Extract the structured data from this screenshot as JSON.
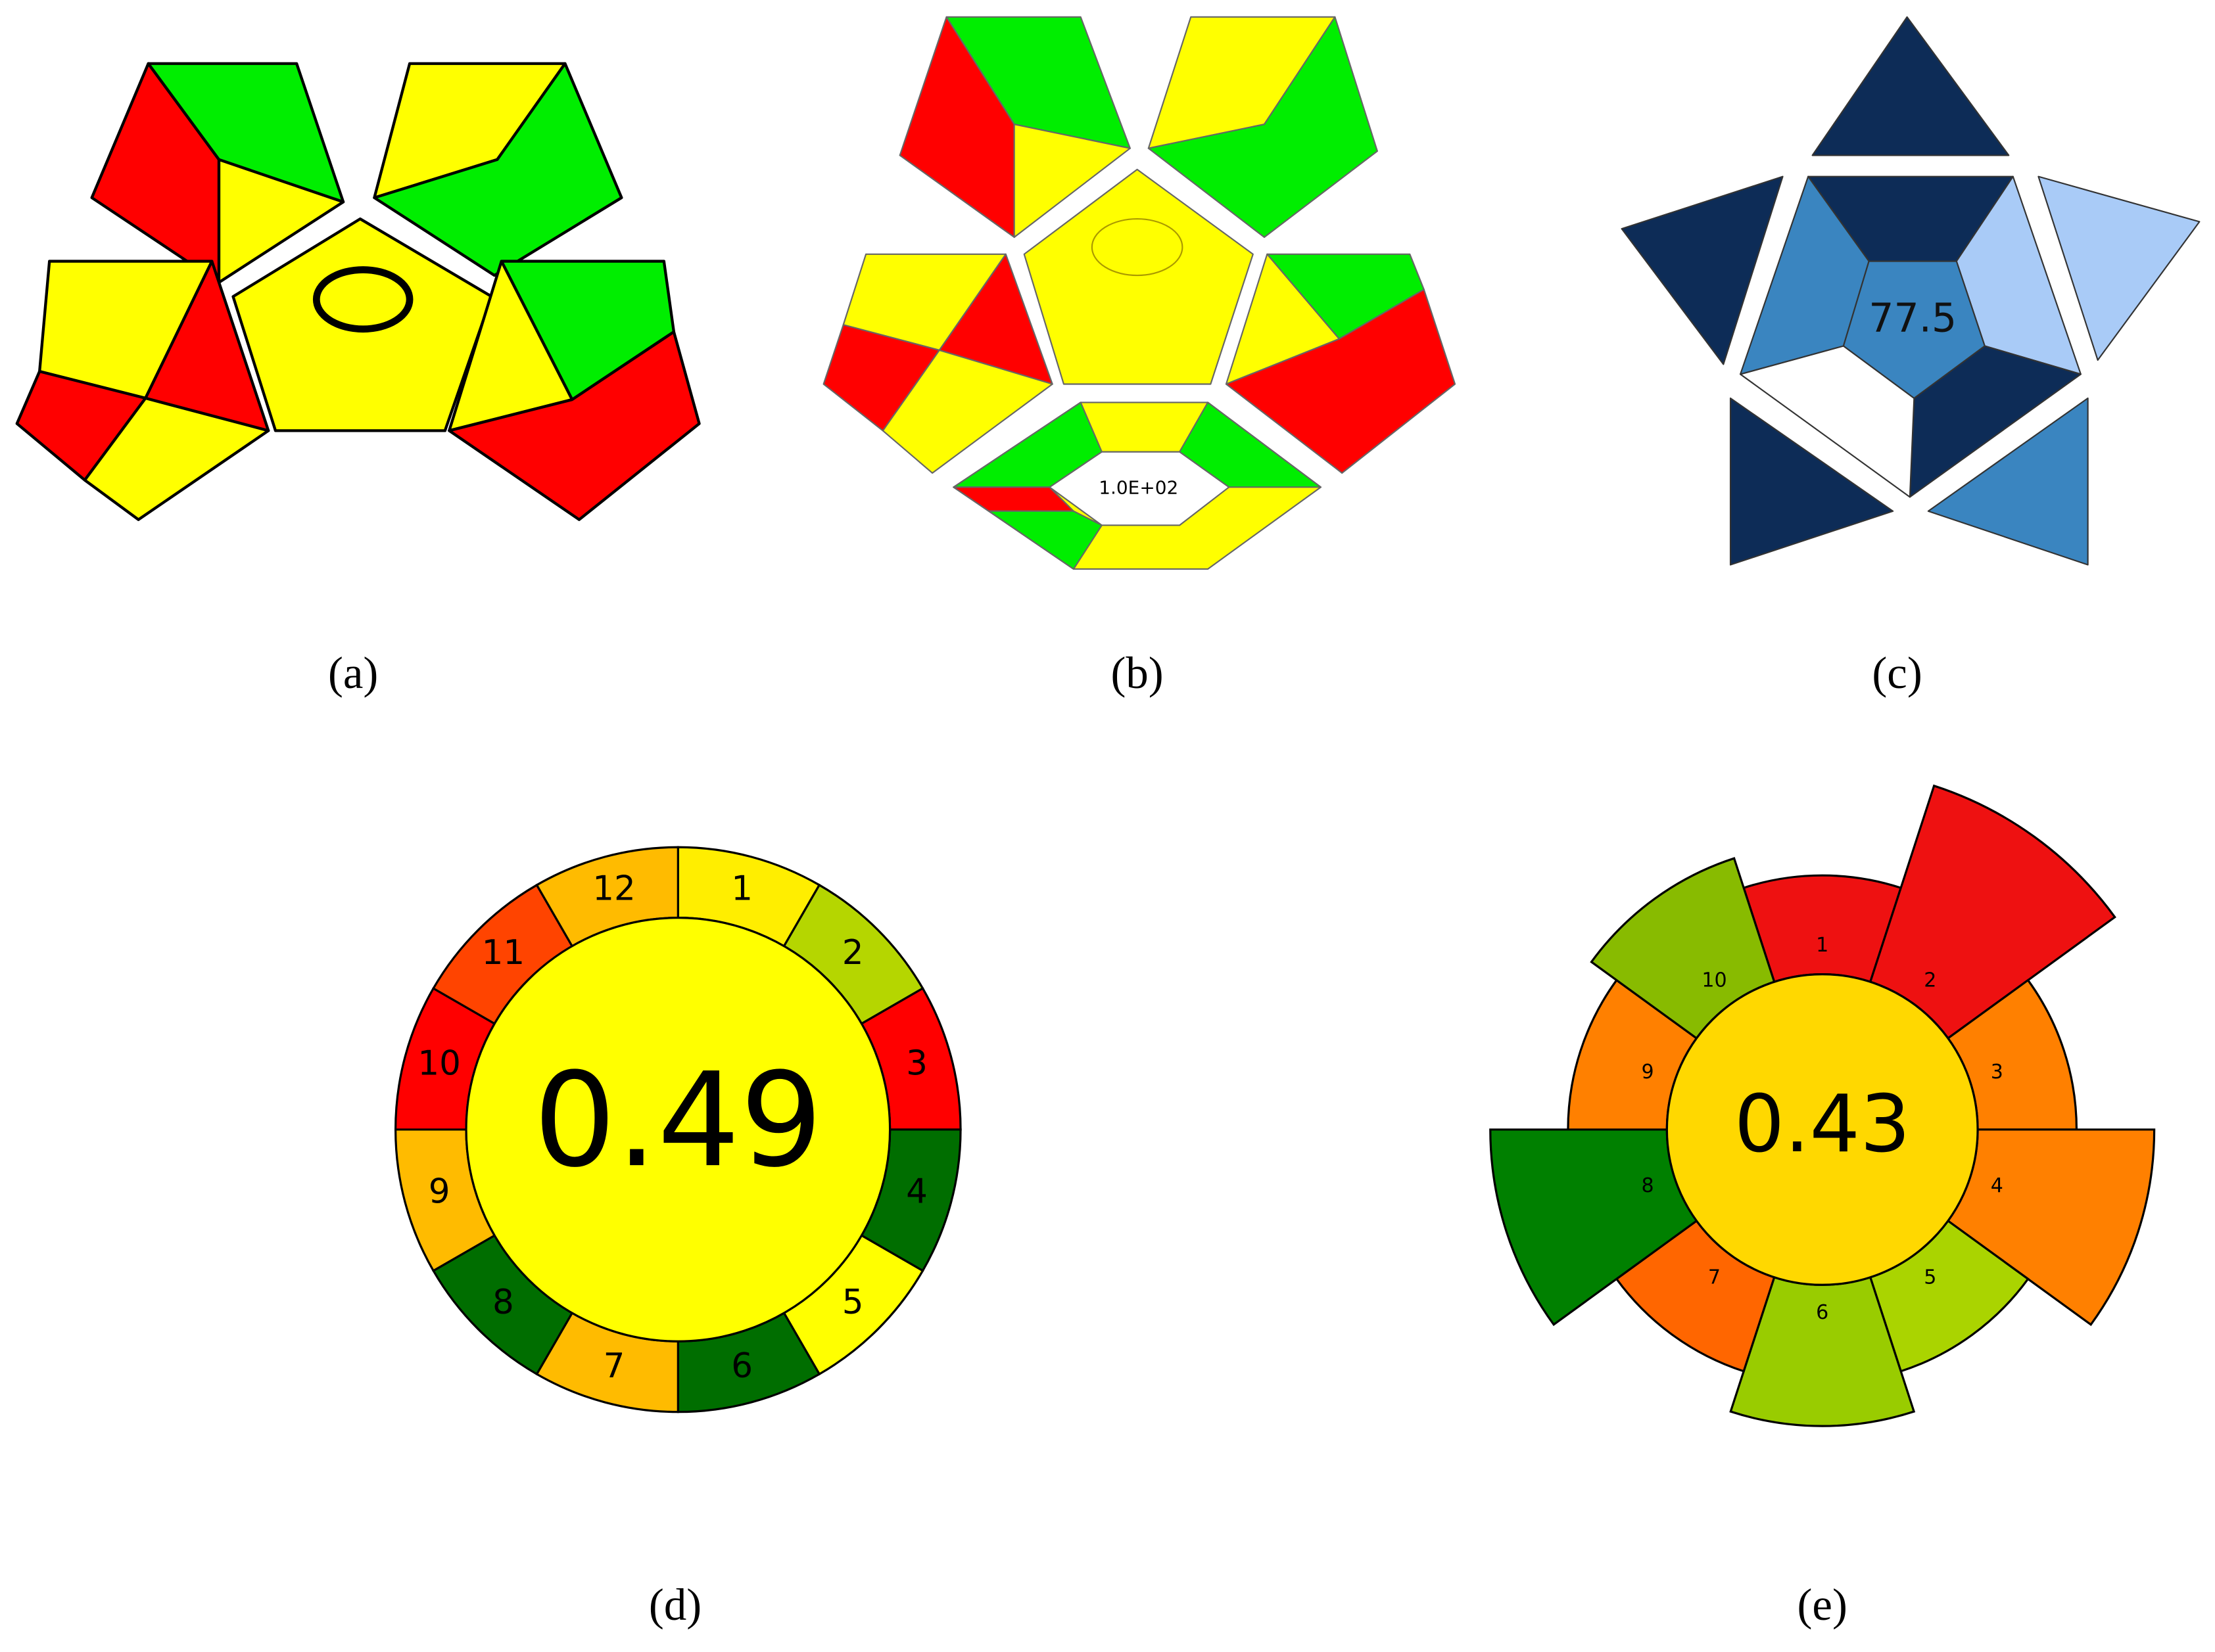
{
  "panels": [
    {
      "label": "(a)"
    },
    {
      "label": "(b)",
      "center_text": "1.0E+02"
    },
    {
      "label": "(c)",
      "center_text": "77.5"
    },
    {
      "label": "(d)",
      "center_text": "0.49",
      "segments": [
        {
          "label": "1",
          "color": "#ffee00"
        },
        {
          "label": "2",
          "color": "#b5d600"
        },
        {
          "label": "3",
          "color": "#ff0000"
        },
        {
          "label": "4",
          "color": "#006e00"
        },
        {
          "label": "5",
          "color": "#ffff00"
        },
        {
          "label": "6",
          "color": "#006e00"
        },
        {
          "label": "7",
          "color": "#ffbb00"
        },
        {
          "label": "8",
          "color": "#006e00"
        },
        {
          "label": "9",
          "color": "#ffbb00"
        },
        {
          "label": "10",
          "color": "#ff0000"
        },
        {
          "label": "11",
          "color": "#ff4400"
        },
        {
          "label": "12",
          "color": "#ffbb00"
        }
      ]
    },
    {
      "label": "(e)",
      "center_text": "0.43",
      "segments": [
        {
          "label": "1",
          "color": "#ee1111"
        },
        {
          "label": "2",
          "color": "#ee1111"
        },
        {
          "label": "3",
          "color": "#ff8000"
        },
        {
          "label": "4",
          "color": "#ff8000"
        },
        {
          "label": "5",
          "color": "#aad400"
        },
        {
          "label": "6",
          "color": "#99cc00"
        },
        {
          "label": "7",
          "color": "#ff6600"
        },
        {
          "label": "8",
          "color": "#008000"
        },
        {
          "label": "9",
          "color": "#ff8000"
        },
        {
          "label": "10",
          "color": "#88bb00"
        }
      ]
    }
  ]
}
